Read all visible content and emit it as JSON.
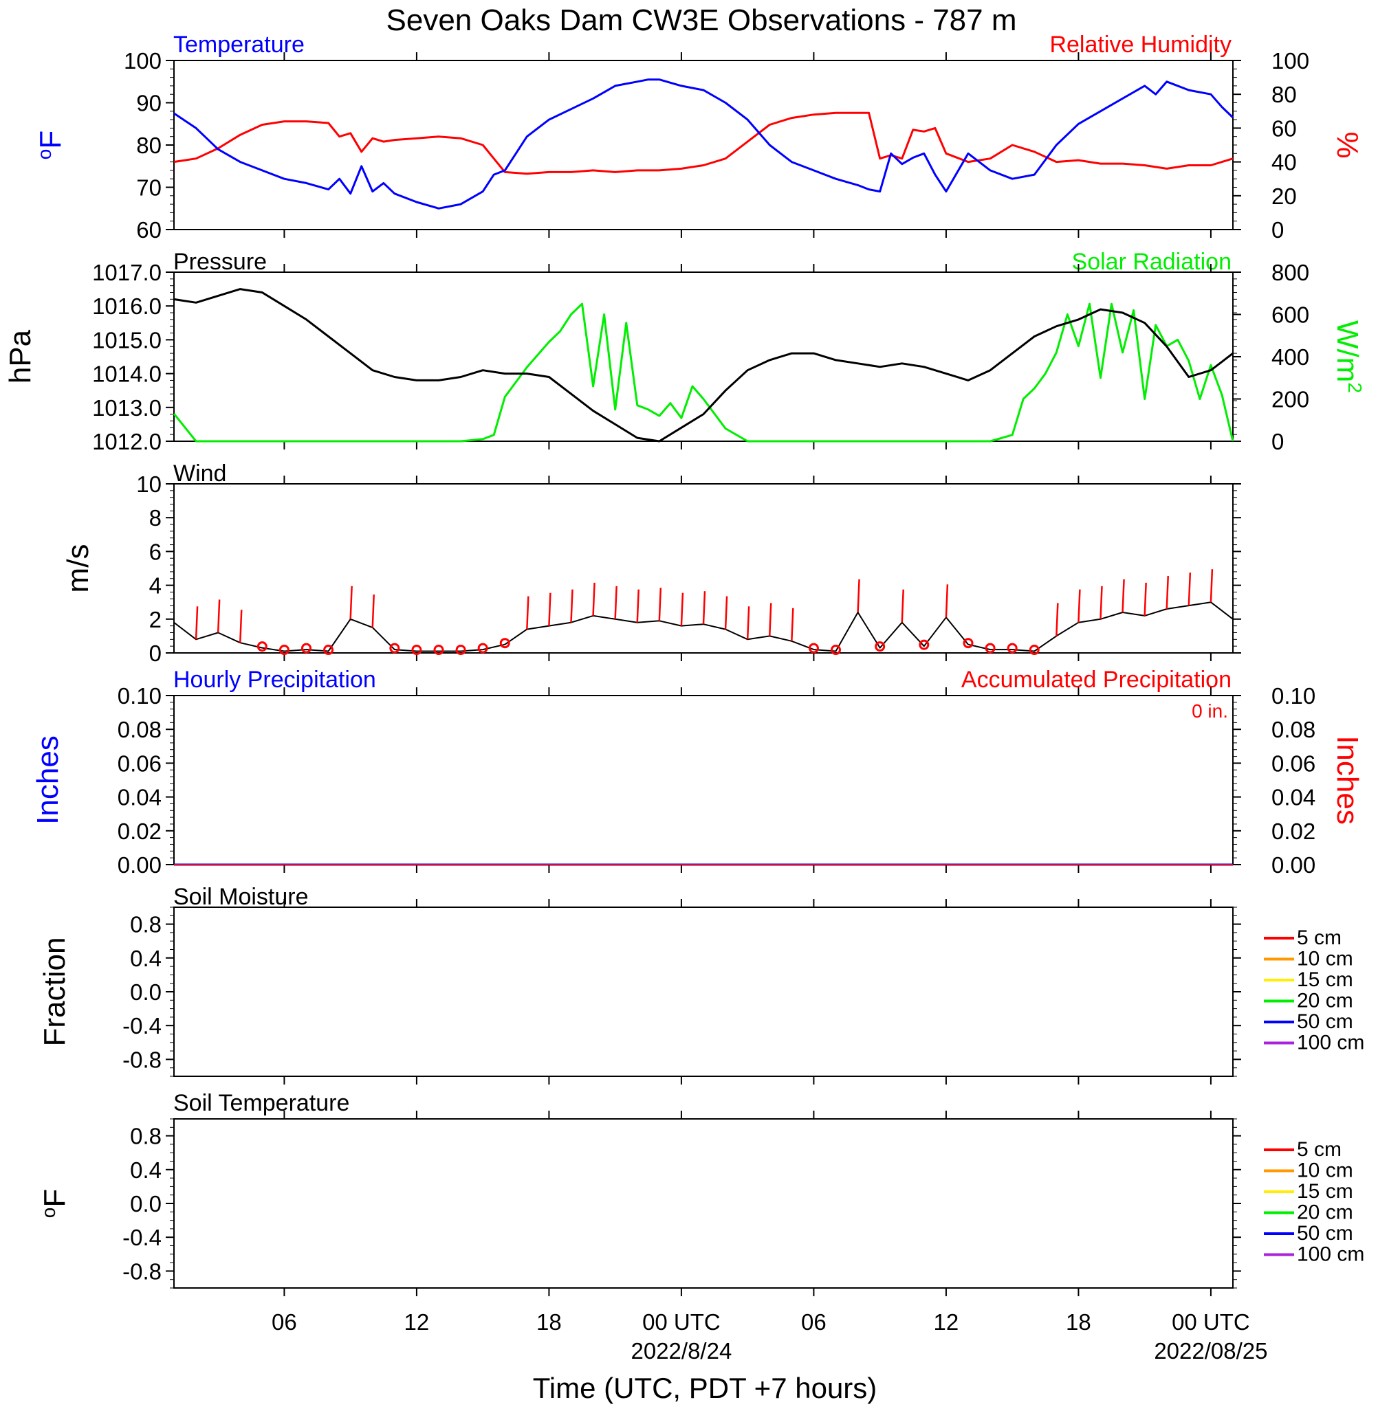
{
  "title": "Seven Oaks Dam CW3E Observations - 787 m",
  "x_axis": {
    "label": "Time (UTC, PDT +7 hours)",
    "range_hours": [
      0,
      48
    ],
    "tick_labels": [
      {
        "hour": 5,
        "label": "06"
      },
      {
        "hour": 11,
        "label": "12"
      },
      {
        "hour": 17,
        "label": "18"
      },
      {
        "hour": 23,
        "label": "00 UTC",
        "sub": "2022/8/24"
      },
      {
        "hour": 29,
        "label": "06"
      },
      {
        "hour": 35,
        "label": "12"
      },
      {
        "hour": 41,
        "label": "18"
      },
      {
        "hour": 47,
        "label": "00 UTC",
        "sub": "2022/08/25"
      }
    ]
  },
  "colors": {
    "temperature": "#0000ff",
    "humidity": "#ff0000",
    "pressure": "#000000",
    "solar": "#00ee00",
    "wind": "#000000",
    "barb": "#ff0000",
    "precip_hourly": "#0000ff",
    "precip_acc": "#ff0000"
  },
  "panels": {
    "temp_rh": {
      "left_label": "Temperature",
      "right_label": "Relative Humidity",
      "left_unit": "oF",
      "right_unit": "%",
      "left_ticks": [
        "100",
        "90",
        "80",
        "70",
        "60"
      ],
      "right_ticks": [
        "100",
        "80",
        "60",
        "40",
        "20",
        "0"
      ]
    },
    "pressure_solar": {
      "left_label": "Pressure",
      "right_label": "Solar Radiation",
      "left_unit": "hPa",
      "right_unit": "W/m2",
      "left_ticks": [
        "1017.0",
        "1016.0",
        "1015.0",
        "1014.0",
        "1013.0",
        "1012.0"
      ],
      "right_ticks": [
        "800",
        "600",
        "400",
        "200",
        "0"
      ]
    },
    "wind": {
      "left_label": "Wind",
      "left_unit": "m/s",
      "left_ticks": [
        "10",
        "8",
        "6",
        "4",
        "2",
        "0"
      ]
    },
    "precip": {
      "left_label": "Hourly Precipitation",
      "right_label": "Accumulated Precipitation",
      "total_text": "0 in.",
      "left_unit": "Inches",
      "right_unit": "Inches",
      "left_ticks": [
        "0.10",
        "0.08",
        "0.06",
        "0.04",
        "0.02",
        "0.00"
      ],
      "right_ticks": [
        "0.10",
        "0.08",
        "0.06",
        "0.04",
        "0.02",
        "0.00"
      ]
    },
    "soil_moisture": {
      "left_label": "Soil Moisture",
      "left_unit": "Fraction",
      "left_ticks": [
        "0.8",
        "0.4",
        "0.0",
        "-0.4",
        "-0.8"
      ],
      "legend": [
        {
          "label": "5 cm",
          "color": "#ff0000"
        },
        {
          "label": "10 cm",
          "color": "#ff9900"
        },
        {
          "label": "15 cm",
          "color": "#ffee00"
        },
        {
          "label": "20 cm",
          "color": "#00ee00"
        },
        {
          "label": "50 cm",
          "color": "#0000ff"
        },
        {
          "label": "100 cm",
          "color": "#aa22dd"
        }
      ]
    },
    "soil_temperature": {
      "left_label": "Soil Temperature",
      "left_unit": "oF",
      "left_ticks": [
        "0.8",
        "0.4",
        "0.0",
        "-0.4",
        "-0.8"
      ],
      "legend": [
        {
          "label": "5 cm",
          "color": "#ff0000"
        },
        {
          "label": "10 cm",
          "color": "#ff9900"
        },
        {
          "label": "15 cm",
          "color": "#ffee00"
        },
        {
          "label": "20 cm",
          "color": "#00ee00"
        },
        {
          "label": "50 cm",
          "color": "#0000ff"
        },
        {
          "label": "100 cm",
          "color": "#aa22dd"
        }
      ]
    }
  },
  "chart_data": [
    {
      "type": "line",
      "title": "Temperature / Relative Humidity",
      "x_unit": "hours since 2022-08-23 01 UTC",
      "series": [
        {
          "name": "Temperature",
          "axis": "left",
          "ylim": [
            60,
            100
          ],
          "x": [
            0,
            1,
            2,
            3,
            4,
            5,
            6,
            7,
            7.5,
            8,
            8.5,
            9,
            9.5,
            10,
            11,
            12,
            13,
            14,
            14.5,
            15,
            16,
            17,
            18,
            19,
            20,
            21,
            21.5,
            22,
            23,
            24,
            25,
            26,
            27,
            28,
            29,
            30,
            31,
            31.5,
            32,
            32.5,
            33,
            33.5,
            34,
            34.5,
            35,
            36,
            37,
            38,
            39,
            40,
            41,
            42,
            43,
            44,
            44.5,
            45,
            46,
            47,
            47.5,
            48
          ],
          "y": [
            87.5,
            84,
            79,
            76,
            74,
            72,
            71,
            69.5,
            72,
            68.5,
            75,
            69,
            71,
            68.5,
            66.5,
            65,
            66,
            69,
            73,
            74,
            82,
            86,
            88.5,
            91,
            94,
            95,
            95.5,
            95.5,
            94,
            93,
            90,
            86,
            80,
            76,
            74,
            72,
            70.5,
            69.5,
            69,
            78,
            75.5,
            77,
            78,
            73,
            69,
            78,
            74,
            72,
            73,
            80,
            85,
            88,
            91,
            94,
            92,
            95,
            93,
            92,
            89,
            86.5
          ]
        },
        {
          "name": "Relative Humidity",
          "axis": "right",
          "ylim": [
            0,
            100
          ],
          "x": [
            0,
            1,
            2,
            3,
            4,
            5,
            6,
            7,
            7.5,
            8,
            8.5,
            9,
            9.5,
            10,
            11,
            12,
            13,
            14,
            14.5,
            15,
            16,
            17,
            18,
            19,
            20,
            21,
            22,
            23,
            24,
            25,
            26,
            27,
            28,
            29,
            30,
            31,
            31.5,
            32,
            32.5,
            33,
            33.5,
            34,
            34.5,
            35,
            36,
            37,
            38,
            39,
            40,
            41,
            42,
            43,
            44,
            45,
            46,
            47,
            47.5,
            48
          ],
          "y": [
            40,
            42,
            48,
            56,
            62,
            64,
            64,
            63,
            55,
            57,
            46,
            54,
            52,
            53,
            54,
            55,
            54,
            50,
            42,
            34,
            33,
            34,
            34,
            35,
            34,
            35,
            35,
            36,
            38,
            42,
            52,
            62,
            66,
            68,
            69,
            69,
            69,
            42,
            44,
            42,
            59,
            58,
            60,
            45,
            40,
            42,
            50,
            46,
            40,
            41,
            39,
            39,
            38,
            36,
            38,
            38,
            40,
            42
          ]
        }
      ]
    },
    {
      "type": "line",
      "title": "Pressure / Solar Radiation",
      "x_unit": "hours since 2022-08-23 01 UTC",
      "series": [
        {
          "name": "Pressure",
          "axis": "left",
          "ylim": [
            1012,
            1017
          ],
          "x": [
            0,
            1,
            2,
            3,
            4,
            5,
            6,
            7,
            8,
            9,
            10,
            11,
            12,
            13,
            14,
            15,
            16,
            17,
            18,
            19,
            20,
            21,
            22,
            23,
            24,
            25,
            26,
            27,
            28,
            29,
            30,
            31,
            32,
            33,
            34,
            35,
            36,
            37,
            38,
            39,
            40,
            41,
            42,
            43,
            44,
            45,
            46,
            47,
            48
          ],
          "y": [
            1016.2,
            1016.1,
            1016.3,
            1016.5,
            1016.4,
            1016.0,
            1015.6,
            1015.1,
            1014.6,
            1014.1,
            1013.9,
            1013.8,
            1013.8,
            1013.9,
            1014.1,
            1014.0,
            1014.0,
            1013.9,
            1013.4,
            1012.9,
            1012.5,
            1012.1,
            1012.0,
            1012.4,
            1012.8,
            1013.5,
            1014.1,
            1014.4,
            1014.6,
            1014.6,
            1014.4,
            1014.3,
            1014.2,
            1014.3,
            1014.2,
            1014.0,
            1013.8,
            1014.1,
            1014.6,
            1015.1,
            1015.4,
            1015.6,
            1015.9,
            1015.8,
            1015.5,
            1014.8,
            1013.9,
            1014.1,
            1014.6
          ]
        },
        {
          "name": "Solar Radiation",
          "axis": "right",
          "ylim": [
            0,
            800
          ],
          "x": [
            0,
            1,
            2,
            3,
            4,
            5,
            6,
            7,
            8,
            9,
            10,
            11,
            12,
            13,
            14,
            14.5,
            15,
            16,
            17,
            17.5,
            18,
            18.5,
            19,
            19.5,
            20,
            20.5,
            21,
            21.5,
            22,
            22.5,
            23,
            23.5,
            24,
            25,
            26,
            27,
            28,
            29,
            30,
            31,
            32,
            33,
            34,
            35,
            36,
            37,
            38,
            38.5,
            39,
            39.5,
            40,
            40.5,
            41,
            41.5,
            42,
            42.5,
            43,
            43.5,
            44,
            44.5,
            45,
            45.5,
            46,
            46.5,
            47,
            47.5,
            48
          ],
          "y": [
            130,
            0,
            0,
            0,
            0,
            0,
            0,
            0,
            0,
            0,
            0,
            0,
            0,
            0,
            10,
            30,
            210,
            350,
            470,
            520,
            600,
            650,
            260,
            600,
            150,
            560,
            170,
            150,
            120,
            180,
            110,
            260,
            200,
            60,
            0,
            0,
            0,
            0,
            0,
            0,
            0,
            0,
            0,
            0,
            0,
            0,
            30,
            200,
            250,
            320,
            420,
            600,
            450,
            650,
            300,
            650,
            420,
            620,
            200,
            550,
            450,
            480,
            380,
            200,
            360,
            220,
            0
          ]
        }
      ]
    },
    {
      "type": "line",
      "title": "Wind",
      "x_unit": "hours since 2022-08-23 01 UTC",
      "series": [
        {
          "name": "Wind",
          "ylim": [
            0,
            10
          ],
          "x": [
            0,
            1,
            2,
            3,
            4,
            5,
            6,
            7,
            8,
            9,
            10,
            11,
            12,
            13,
            14,
            15,
            16,
            17,
            18,
            19,
            20,
            21,
            22,
            23,
            24,
            25,
            26,
            27,
            28,
            29,
            30,
            31,
            32,
            33,
            34,
            35,
            36,
            37,
            38,
            39,
            40,
            41,
            42,
            43,
            44,
            45,
            46,
            47,
            48
          ],
          "y": [
            1.8,
            0.8,
            1.2,
            0.6,
            0.3,
            0.1,
            0.2,
            0.1,
            2.0,
            1.5,
            0.2,
            0.1,
            0.1,
            0.1,
            0.2,
            0.5,
            1.4,
            1.6,
            1.8,
            2.2,
            2.0,
            1.8,
            1.9,
            1.6,
            1.7,
            1.4,
            0.8,
            1.0,
            0.7,
            0.2,
            0.1,
            2.4,
            0.3,
            1.8,
            0.4,
            2.1,
            0.5,
            0.2,
            0.2,
            0.1,
            1.0,
            1.8,
            2.0,
            2.4,
            2.2,
            2.6,
            2.8,
            3.0,
            2.0
          ]
        }
      ]
    },
    {
      "type": "line",
      "title": "Precipitation",
      "x_unit": "hours since 2022-08-23 01 UTC",
      "series": [
        {
          "name": "Hourly Precipitation",
          "axis": "left",
          "ylim": [
            0,
            0.1
          ],
          "x": [
            0,
            48
          ],
          "y": [
            0,
            0
          ]
        },
        {
          "name": "Accumulated Precipitation",
          "axis": "right",
          "ylim": [
            0,
            0.1
          ],
          "x": [
            0,
            48
          ],
          "y": [
            0,
            0
          ]
        }
      ]
    },
    {
      "type": "line",
      "title": "Soil Moisture",
      "ylim": [
        -1,
        1
      ],
      "series": []
    },
    {
      "type": "line",
      "title": "Soil Temperature",
      "ylim": [
        -1,
        1
      ],
      "series": []
    }
  ]
}
